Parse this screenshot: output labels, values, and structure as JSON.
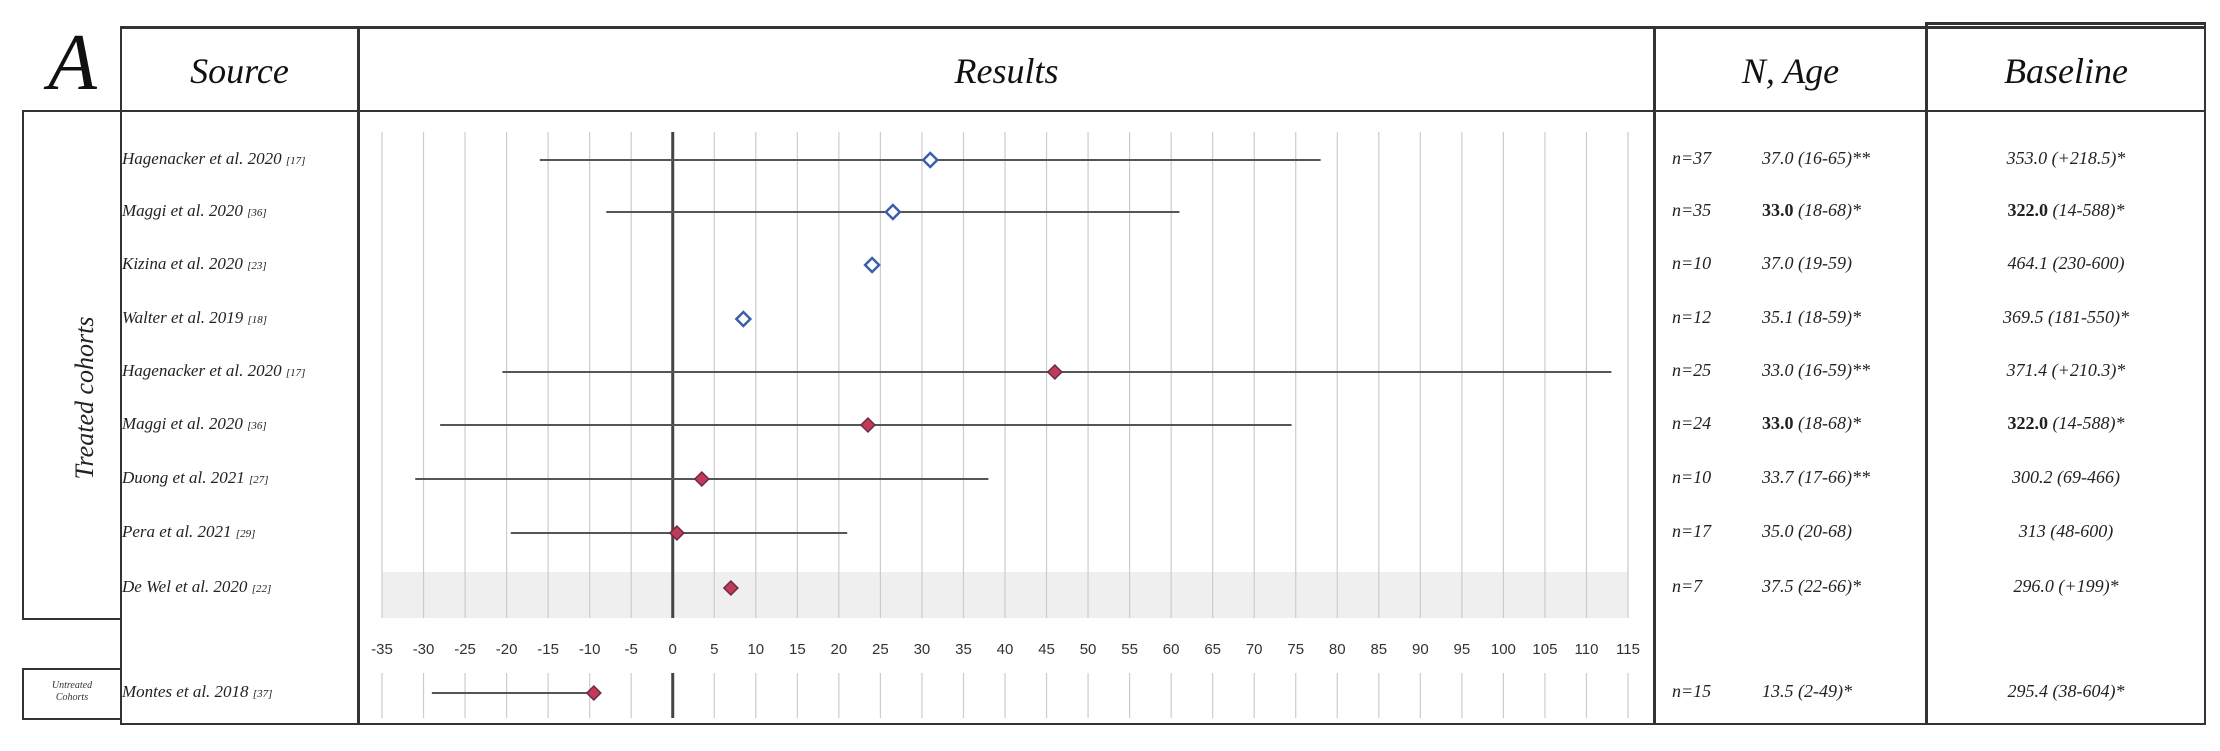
{
  "panel_label": "A",
  "headers": {
    "source": "Source",
    "results": "Results",
    "n_age": "N, Age",
    "baseline": "Baseline"
  },
  "group_labels": {
    "treated": "Treated cohorts",
    "untreated_line1": "Untreated",
    "untreated_line2": "Cohorts"
  },
  "colors": {
    "treated_marker": "#3b5fa8",
    "untreated_marker": "#c23a5a",
    "gridline": "#cccccc",
    "ci_line": "#555555"
  },
  "rows": [
    {
      "source": "Hagenacker et al. 2020",
      "ref": "[17]",
      "n": "n=37",
      "age": "37.0 (16-65)**",
      "age_bold": "",
      "baseline": "353.0 (+218.5)*",
      "baseline_bold": ""
    },
    {
      "source": "Maggi et al. 2020",
      "ref": "[36]",
      "n": "n=35",
      "age_bold": "33.0",
      "age": " (18-68)*",
      "baseline_bold": "322.0",
      "baseline": " (14-588)*"
    },
    {
      "source": "Kizina et al. 2020",
      "ref": "[23]",
      "n": "n=10",
      "age": "37.0 (19-59)",
      "age_bold": "",
      "baseline": "464.1 (230-600)",
      "baseline_bold": ""
    },
    {
      "source": "Walter et al. 2019",
      "ref": "[18]",
      "n": "n=12",
      "age": "35.1 (18-59)*",
      "age_bold": "",
      "baseline": "369.5 (181-550)*",
      "baseline_bold": ""
    },
    {
      "source": "Hagenacker et al. 2020",
      "ref": "[17]",
      "n": "n=25",
      "age": "33.0 (16-59)**",
      "age_bold": "",
      "baseline": "371.4 (+210.3)*",
      "baseline_bold": ""
    },
    {
      "source": "Maggi et al. 2020",
      "ref": "[36]",
      "n": "n=24",
      "age_bold": "33.0",
      "age": " (18-68)*",
      "baseline_bold": "322.0",
      "baseline": " (14-588)*"
    },
    {
      "source": "Duong et al. 2021",
      "ref": "[27]",
      "n": "n=10",
      "age": "33.7 (17-66)**",
      "age_bold": "",
      "baseline": "300.2 (69-466)",
      "baseline_bold": ""
    },
    {
      "source": "Pera et al. 2021",
      "ref": "[29]",
      "n": "n=17",
      "age": "35.0 (20-68)",
      "age_bold": "",
      "baseline": "313 (48-600)",
      "baseline_bold": ""
    },
    {
      "source": "De Wel et al. 2020",
      "ref": "[22]",
      "n": "n=7",
      "age": "37.5 (22-66)*",
      "age_bold": "",
      "baseline": "296.0 (+199)*",
      "baseline_bold": ""
    },
    {
      "source": "Montes et al. 2018",
      "ref": "[37]",
      "n": "n=15",
      "age": "13.5 (2-49)*",
      "age_bold": "",
      "baseline": "295.4 (38-604)*",
      "baseline_bold": ""
    }
  ],
  "chart_data": {
    "type": "scatter",
    "title": "Results",
    "xlim": [
      -35,
      115
    ],
    "x_ticks": [
      -35,
      -30,
      -25,
      -20,
      -15,
      -10,
      -5,
      0,
      5,
      10,
      15,
      20,
      25,
      30,
      35,
      40,
      45,
      50,
      55,
      60,
      65,
      70,
      75,
      80,
      85,
      90,
      95,
      100,
      105,
      110,
      115
    ],
    "grid": true,
    "reference_line": 0,
    "points": [
      {
        "label": "Hagenacker et al. 2020",
        "estimate": 31,
        "lower": -16,
        "upper": 78,
        "marker": "open-diamond",
        "color": "#3b5fa8"
      },
      {
        "label": "Maggi et al. 2020",
        "estimate": 26.5,
        "lower": -8,
        "upper": 61,
        "marker": "open-diamond",
        "color": "#3b5fa8"
      },
      {
        "label": "Kizina et al. 2020",
        "estimate": 24,
        "lower": null,
        "upper": null,
        "marker": "open-diamond",
        "color": "#3b5fa8"
      },
      {
        "label": "Walter et al. 2019",
        "estimate": 8.5,
        "lower": null,
        "upper": null,
        "marker": "open-diamond",
        "color": "#3b5fa8"
      },
      {
        "label": "Hagenacker et al. 2020",
        "estimate": 46,
        "lower": -20.5,
        "upper": 113,
        "marker": "filled-diamond",
        "color": "#c23a5a"
      },
      {
        "label": "Maggi et al. 2020",
        "estimate": 23.5,
        "lower": -28,
        "upper": 74.5,
        "marker": "filled-diamond",
        "color": "#c23a5a"
      },
      {
        "label": "Duong et al. 2021",
        "estimate": 3.5,
        "lower": -31,
        "upper": 38,
        "marker": "filled-diamond",
        "color": "#c23a5a"
      },
      {
        "label": "Pera et al. 2021",
        "estimate": 0.5,
        "lower": -19.5,
        "upper": 21,
        "marker": "filled-diamond",
        "color": "#c23a5a"
      },
      {
        "label": "De Wel et al. 2020",
        "estimate": 7,
        "lower": null,
        "upper": null,
        "marker": "filled-diamond",
        "color": "#c23a5a"
      },
      {
        "label": "Montes et al. 2018",
        "estimate": -9.5,
        "lower": -29,
        "upper": null,
        "marker": "filled-diamond",
        "color": "#c23a5a"
      }
    ]
  }
}
